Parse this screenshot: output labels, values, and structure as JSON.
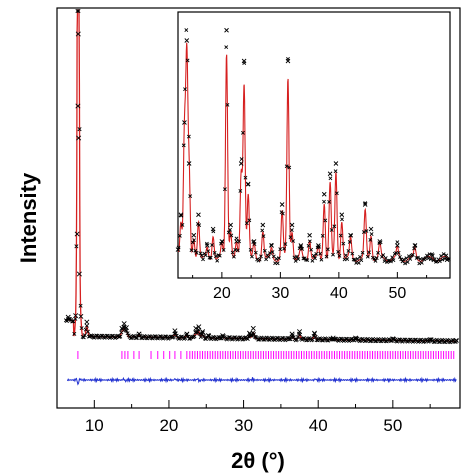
{
  "chart_data": [
    {
      "type": "line",
      "title": "",
      "xlabel": "2θ (°)",
      "ylabel": "Intensity",
      "xlim": [
        5,
        59
      ],
      "xticks": [
        10,
        20,
        30,
        40,
        50
      ],
      "y_tick_labels": "none",
      "grid": false,
      "legend": "none",
      "series": [
        {
          "role": "observed",
          "marker": "x",
          "color": "#000000",
          "x": [
            6.5,
            7.5,
            7.7,
            7.8,
            7.85,
            7.9,
            8.0,
            8.2,
            9,
            13.7,
            14.0,
            14.3,
            16,
            20.8,
            22.4,
            23.6,
            24.0,
            24.5,
            25.3,
            27.2,
            30.8,
            31.3,
            36.5,
            37.5,
            39.5,
            42,
            45,
            50,
            55,
            58.5
          ],
          "y": [
            3.6,
            3.8,
            14.0,
            30.0,
            39.0,
            26.0,
            9.0,
            3.7,
            3.0,
            2.2,
            2.8,
            2.3,
            1.5,
            1.9,
            1.5,
            2.2,
            2.4,
            1.8,
            1.3,
            1.3,
            1.6,
            2.2,
            1.5,
            1.8,
            1.6,
            1.0,
            1.0,
            0.9,
            0.8,
            0.7
          ]
        },
        {
          "role": "calculated",
          "color": "#d62020",
          "x": [
            6.5,
            7.5,
            7.7,
            7.8,
            7.85,
            7.9,
            8.0,
            8.2,
            9,
            13.7,
            14.0,
            14.3,
            16,
            20.8,
            22.4,
            23.6,
            24.0,
            24.5,
            25.3,
            27.2,
            30.8,
            31.3,
            36.5,
            37.5,
            39.5,
            42,
            45,
            50,
            55,
            58.5
          ],
          "y": [
            3.5,
            3.7,
            13.0,
            29.0,
            37.5,
            25.0,
            8.5,
            3.6,
            2.9,
            2.0,
            2.5,
            2.1,
            1.4,
            1.7,
            1.4,
            2.0,
            2.1,
            1.6,
            1.2,
            1.2,
            1.5,
            2.0,
            1.4,
            1.6,
            1.5,
            0.95,
            0.95,
            0.85,
            0.75,
            0.65
          ]
        },
        {
          "role": "difference",
          "color": "#1f2fd0",
          "x": [
            6.5,
            7.6,
            7.8,
            7.85,
            7.9,
            8.1,
            9,
            13.9,
            14.2,
            20.8,
            23.8,
            24.1,
            31.2,
            39.6,
            45,
            58.5
          ],
          "y": [
            0,
            0.4,
            -1.6,
            1.2,
            -0.8,
            0.3,
            0,
            0.3,
            -0.3,
            0.3,
            0.3,
            -0.3,
            0.3,
            0.3,
            0,
            0
          ]
        }
      ],
      "reflection_markers": {
        "color": "#ff00ff",
        "x_range": [
          7.5,
          58.5
        ],
        "density": "dense ticks beyond 13°"
      }
    },
    {
      "type": "line",
      "title": "",
      "role": "inset",
      "xlim": [
        12.5,
        59
      ],
      "xticks": [
        20,
        30,
        40,
        50
      ],
      "y_tick_labels": "none",
      "grid": false,
      "legend": "none",
      "series": [
        {
          "role": "observed",
          "marker": "x",
          "color": "#000000",
          "x": [
            12.5,
            13.0,
            13.6,
            14.0,
            14.4,
            15.2,
            16.0,
            17.5,
            18.5,
            20.0,
            20.8,
            21.5,
            22.5,
            23.3,
            23.8,
            24.5,
            25.5,
            27.0,
            28.5,
            30.3,
            31.3,
            32.0,
            33.5,
            35.0,
            36.5,
            37.5,
            38.5,
            39.5,
            40.5,
            42.0,
            44.5,
            45.5,
            47.0,
            50.0,
            53.0,
            56.0,
            58.5
          ],
          "y": [
            0.8,
            2.5,
            7.0,
            11.0,
            5.0,
            1.5,
            2.5,
            1.0,
            1.8,
            1.2,
            11.5,
            2.0,
            1.2,
            5.0,
            10.0,
            4.0,
            1.2,
            2.0,
            1.0,
            3.0,
            10.0,
            2.0,
            1.0,
            1.5,
            1.0,
            3.5,
            4.5,
            5.0,
            2.5,
            1.5,
            3.0,
            1.8,
            1.2,
            1.0,
            1.0,
            0.5,
            0.3
          ]
        },
        {
          "role": "calculated",
          "color": "#d62020",
          "x": [
            12.5,
            13.0,
            13.6,
            14.0,
            14.4,
            15.2,
            16.0,
            17.5,
            18.5,
            20.0,
            20.8,
            21.5,
            22.5,
            23.3,
            23.8,
            24.5,
            25.5,
            27.0,
            28.5,
            30.3,
            31.3,
            32.0,
            33.5,
            35.0,
            36.5,
            37.5,
            38.5,
            39.5,
            40.5,
            42.0,
            44.5,
            45.5,
            47.0,
            50.0,
            53.0,
            56.0,
            58.5
          ],
          "y": [
            0.7,
            2.3,
            6.5,
            10.0,
            4.5,
            1.4,
            2.3,
            0.9,
            1.6,
            1.1,
            10.5,
            1.8,
            1.1,
            4.6,
            9.0,
            3.6,
            1.1,
            1.8,
            0.9,
            2.7,
            9.2,
            1.8,
            0.9,
            1.4,
            0.9,
            3.2,
            4.1,
            4.6,
            2.3,
            1.4,
            2.7,
            1.6,
            1.1,
            0.9,
            0.9,
            0.45,
            0.25
          ]
        }
      ]
    }
  ]
}
